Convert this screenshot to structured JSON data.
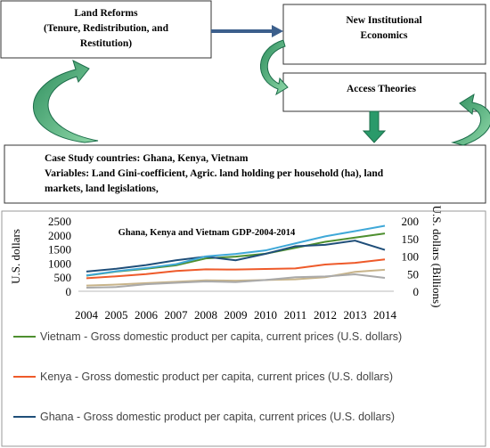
{
  "diagram": {
    "nodes": [
      {
        "lines": [
          "Land Reforms",
          "(Tenure, Redistribution, and",
          "Restitution)"
        ]
      },
      {
        "lines": [
          "New Institutional",
          "Economics"
        ]
      },
      {
        "lines": [
          "Access Theories"
        ]
      },
      {
        "lines": [
          "Case Study countries: Ghana, Kenya, Vietnam",
          "Variables: Land Gini-coefficient, Agric. land holding per household (ha), land",
          "markets, land legislations,"
        ]
      }
    ]
  },
  "chart_data": {
    "type": "line",
    "title": "Ghana, Kenya and Vietnam GDP-2004-2014",
    "y_label": "U.S. dollars",
    "y2_label": "U.S. dollars (Billions)",
    "categories": [
      "2004",
      "2005",
      "2006",
      "2007",
      "2008",
      "2009",
      "2010",
      "2011",
      "2012",
      "2013",
      "2014"
    ],
    "ylim": [
      0,
      2500
    ],
    "yticks": [
      0,
      500,
      1000,
      1500,
      2000,
      2500
    ],
    "y2lim": [
      0,
      200
    ],
    "y2ticks": [
      0,
      50,
      100,
      150,
      200
    ],
    "series": [
      {
        "name": "Vietnam - Gross domestic product per capita, current prices (U.S. dollars)",
        "color": "#4e8f2f",
        "values": [
          554,
          700,
          797,
          920,
          1165,
          1232,
          1334,
          1543,
          1755,
          1908,
          2052
        ]
      },
      {
        "name": "Kenya - Gross domestic product per capita, current prices (U.S. dollars)",
        "color": "#ee5a2a",
        "values": [
          464,
          530,
          610,
          720,
          780,
          770,
          790,
          810,
          950,
          1010,
          1130
        ]
      },
      {
        "name": "Ghana - Gross domestic product per capita, current prices (U.S. dollars)",
        "color": "#1f4e79",
        "values": [
          700,
          800,
          930,
          1100,
          1230,
          1100,
          1330,
          1600,
          1650,
          1800,
          1470
        ]
      },
      {
        "color": "#3fa8d8",
        "axis": "y2",
        "values": [
          45,
          57,
          66,
          77,
          99,
          106,
          116,
          136,
          156,
          171,
          186
        ]
      },
      {
        "color": "#c8b48a",
        "axis": "y2",
        "values": [
          16,
          19,
          23,
          27,
          31,
          30,
          32,
          34,
          40,
          55,
          61
        ]
      },
      {
        "color": "#aaaaaa",
        "axis": "y2",
        "values": [
          10,
          12,
          20,
          24,
          28,
          26,
          32,
          40,
          42,
          48,
          38
        ]
      }
    ]
  }
}
